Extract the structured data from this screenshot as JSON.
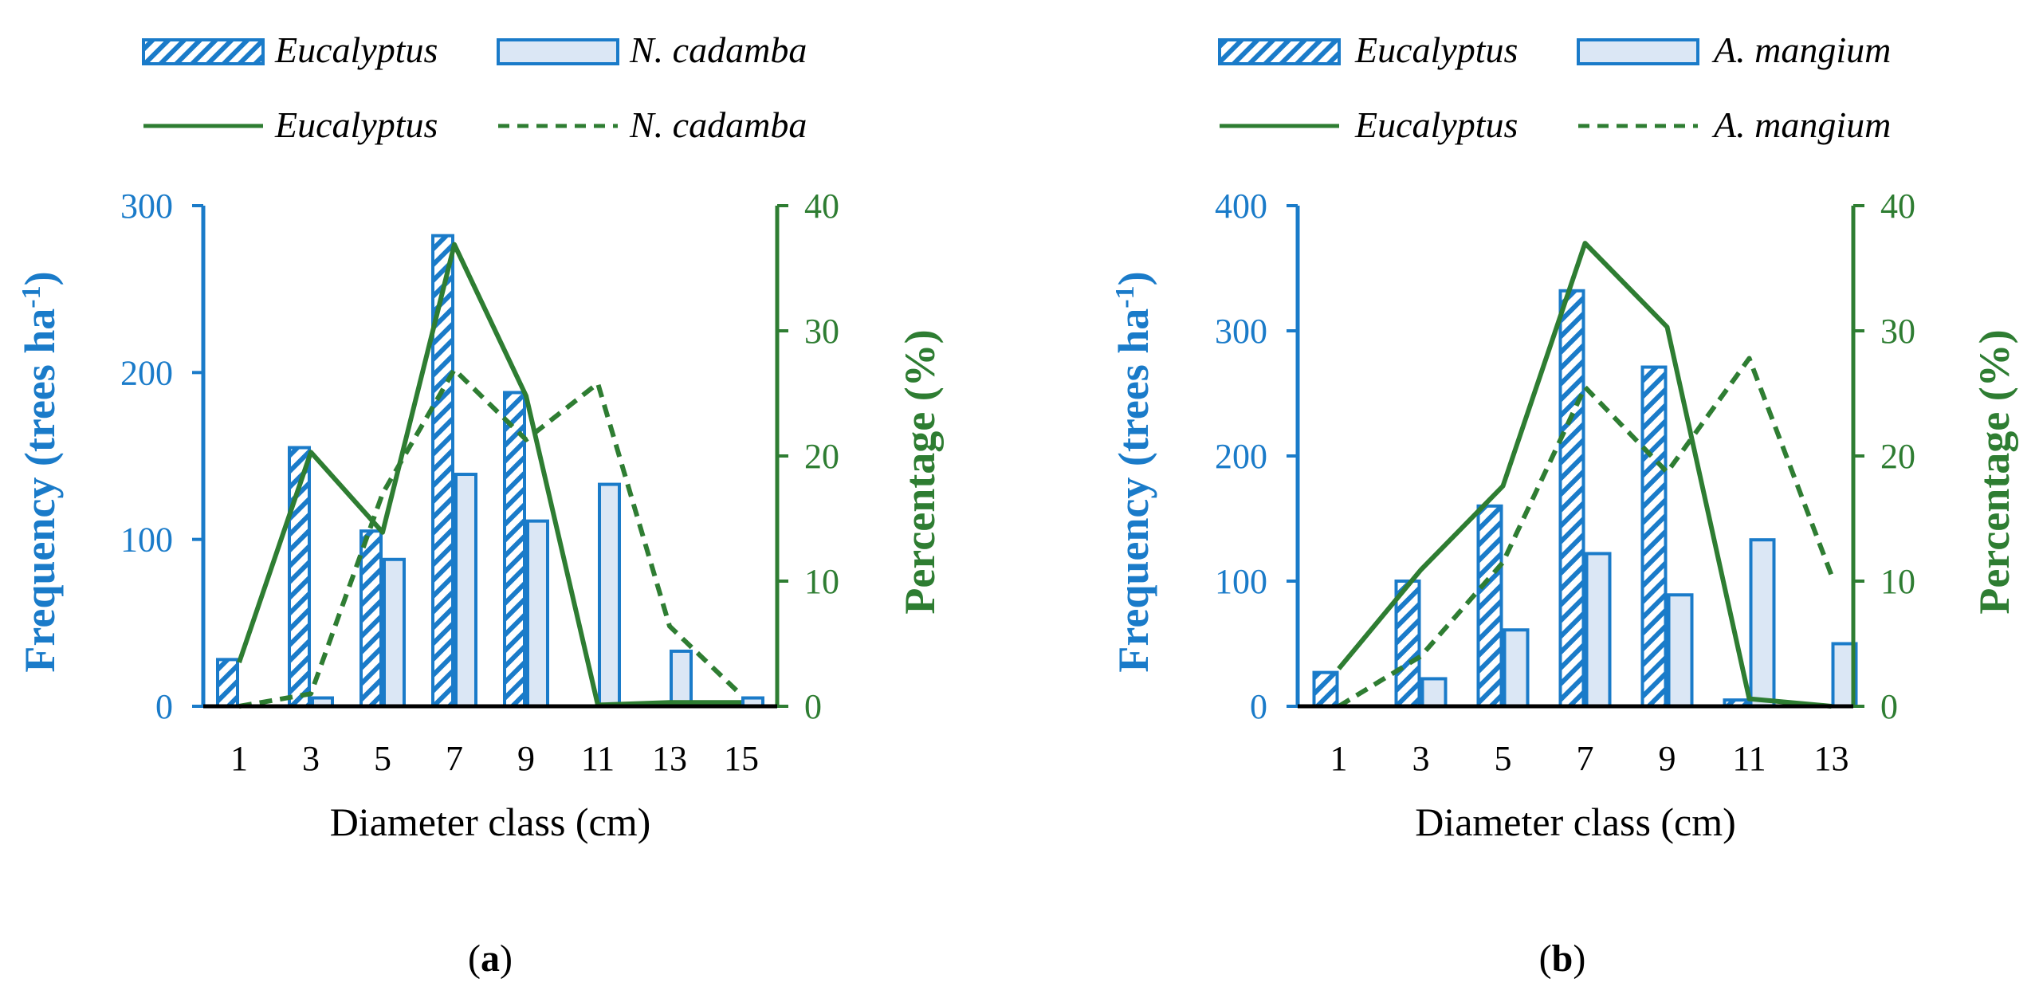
{
  "colors": {
    "bar_blue": "#1a7bc9",
    "bar_fill_light": "#dbe7f5",
    "line_green": "#2e7d32",
    "axis_black": "#000000"
  },
  "chart_data": [
    {
      "type": "bar",
      "panel_label": "(a)",
      "panel_letter": "a",
      "xlabel": "Diameter class (cm)",
      "ylabel": "Frequency (trees ha",
      "ylabel_sup": "-1",
      "ylabel_close": ")",
      "y2label": "Percentage (%)",
      "categories": [
        "1",
        "3",
        "5",
        "7",
        "9",
        "11",
        "13",
        "15"
      ],
      "ylim": [
        0,
        300
      ],
      "yticks": [
        "0",
        "100",
        "200",
        "300"
      ],
      "y2lim": [
        0,
        40
      ],
      "y2ticks": [
        "0",
        "10",
        "20",
        "30",
        "40"
      ],
      "legend": {
        "bar1": "Eucalyptus",
        "bar2": "N. cadamba",
        "line1": "Eucalyptus",
        "line2": "N. cadamba"
      },
      "bar_series": [
        {
          "name": "Eucalyptus",
          "pattern": "hatched",
          "values": [
            28,
            155,
            105,
            282,
            188,
            0,
            0,
            0
          ]
        },
        {
          "name": "N. cadamba",
          "pattern": "light",
          "values": [
            0,
            5,
            88,
            139,
            111,
            133,
            33,
            5
          ]
        }
      ],
      "line_series": [
        {
          "name": "Eucalyptus",
          "style": "solid",
          "values": [
            3.5,
            20.3,
            13.9,
            36.9,
            24.8,
            0.1,
            0.3,
            0.3
          ]
        },
        {
          "name": "N. cadamba",
          "style": "dashed",
          "values": [
            0,
            1.0,
            17.0,
            26.9,
            21.3,
            25.8,
            6.4,
            0.9
          ]
        }
      ]
    },
    {
      "type": "bar",
      "panel_label": "(b)",
      "panel_letter": "b",
      "xlabel": "Diameter class (cm)",
      "ylabel": "Frequency (trees ha",
      "ylabel_sup": "-1",
      "ylabel_close": ")",
      "y2label": "Percentage (%)",
      "categories": [
        "1",
        "3",
        "5",
        "7",
        "9",
        "11",
        "13"
      ],
      "ylim": [
        0,
        400
      ],
      "yticks": [
        "0",
        "100",
        "200",
        "300",
        "400"
      ],
      "y2lim": [
        0,
        40
      ],
      "y2ticks": [
        "0",
        "10",
        "20",
        "30",
        "40"
      ],
      "legend": {
        "bar1": "Eucalyptus",
        "bar2": "A. mangium",
        "line1": "Eucalyptus",
        "line2": "A. mangium"
      },
      "bar_series": [
        {
          "name": "Eucalyptus",
          "pattern": "hatched",
          "values": [
            27,
            100,
            160,
            332,
            271,
            5,
            0
          ]
        },
        {
          "name": "A. mangium",
          "pattern": "light",
          "values": [
            0,
            22,
            61,
            122,
            89,
            133,
            50
          ]
        }
      ],
      "line_series": [
        {
          "name": "Eucalyptus",
          "style": "solid",
          "values": [
            3.0,
            10.9,
            17.6,
            37.0,
            30.3,
            0.6,
            0.0
          ]
        },
        {
          "name": "A. mangium",
          "style": "dashed",
          "values": [
            0,
            4.0,
            11.5,
            25.5,
            18.7,
            27.8,
            10.5
          ]
        }
      ]
    }
  ]
}
